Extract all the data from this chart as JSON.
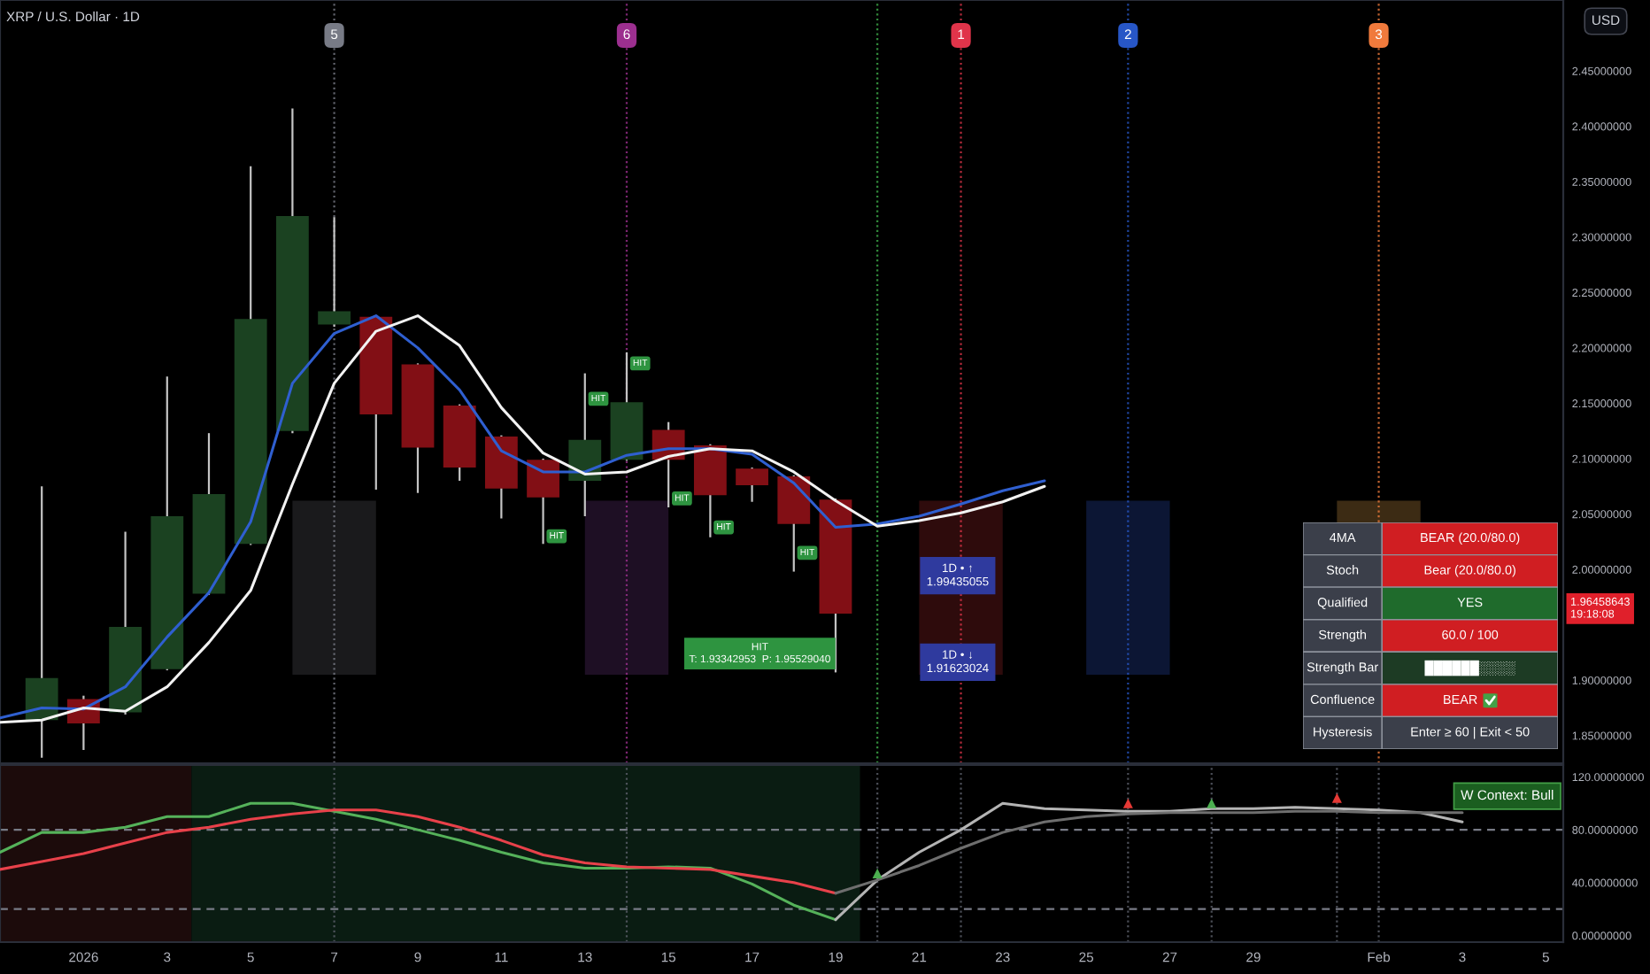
{
  "chart_data": [
    {
      "type": "candlestick",
      "title": "XRP / U.S. Dollar · 1D",
      "xlim": [
        "2025-12-30",
        "2026-02-05T10:00"
      ],
      "ylim": [
        1.825,
        2.514
      ],
      "yticks": [
        {
          "value": 1.85,
          "label": "1.85000000"
        },
        {
          "value": 1.9,
          "label": "1.90000000"
        },
        {
          "value": 2.0,
          "label": "2.00000000"
        },
        {
          "value": 2.05,
          "label": "2.05000000"
        },
        {
          "value": 2.1,
          "label": "2.10000000"
        },
        {
          "value": 2.15,
          "label": "2.15000000"
        },
        {
          "value": 2.2,
          "label": "2.20000000"
        },
        {
          "value": 2.25,
          "label": "2.25000000"
        },
        {
          "value": 2.3,
          "label": "2.30000000"
        },
        {
          "value": 2.35,
          "label": "2.35000000"
        },
        {
          "value": 2.4,
          "label": "2.40000000"
        },
        {
          "value": 2.45,
          "label": "2.45000000"
        }
      ],
      "tick_labels": "y",
      "series": [
        {
          "type": "bar",
          "x": [
            "2026-01-07",
            "2026-01-14",
            "2026-01-22",
            "2026-01-26",
            "2026-02-01"
          ],
          "base": [
            1.905,
            1.905,
            1.905,
            1.905,
            1.905
          ],
          "values": [
            0.157,
            0.157,
            0.157,
            0.157,
            0.157
          ],
          "colors": [
            "#1a1a1c",
            "#1e0f24",
            "#2e0b0c",
            "#0c1634",
            "#3c2b14"
          ]
        },
        {
          "type": "line",
          "color": "#2f5fd0",
          "x": [
            "2025-12-30",
            "2025-12-31",
            "2026-01-01",
            "2026-01-02",
            "2026-01-03",
            "2026-01-04",
            "2026-01-05",
            "2026-01-06",
            "2026-01-07",
            "2026-01-08",
            "2026-01-09",
            "2026-01-10",
            "2026-01-11",
            "2026-01-12",
            "2026-01-13",
            "2026-01-14",
            "2026-01-15",
            "2026-01-16",
            "2026-01-17",
            "2026-01-18",
            "2026-01-19",
            "2026-01-20",
            "2026-01-21",
            "2026-01-22",
            "2026-01-23",
            "2026-01-24"
          ],
          "values": [
            1.866,
            1.875,
            1.874,
            1.894,
            1.939,
            1.979,
            2.043,
            2.168,
            2.213,
            2.229,
            2.2,
            2.162,
            2.107,
            2.088,
            2.088,
            2.103,
            2.109,
            2.109,
            2.104,
            2.078,
            2.038,
            2.041,
            2.048,
            2.059,
            2.071,
            2.08
          ]
        },
        {
          "type": "line",
          "color": "#f2f2f2",
          "x": [
            "2025-12-30",
            "2025-12-31",
            "2026-01-01",
            "2026-01-02",
            "2026-01-03",
            "2026-01-04",
            "2026-01-05",
            "2026-01-06",
            "2026-01-07",
            "2026-01-08",
            "2026-01-09",
            "2026-01-10",
            "2026-01-11",
            "2026-01-12",
            "2026-01-13",
            "2026-01-14",
            "2026-01-15",
            "2026-01-16",
            "2026-01-17",
            "2026-01-18",
            "2026-01-19",
            "2026-01-20",
            "2026-01-21",
            "2026-01-22",
            "2026-01-23",
            "2026-01-24"
          ],
          "values": [
            1.862,
            1.864,
            1.875,
            1.872,
            1.894,
            1.934,
            1.981,
            2.077,
            2.168,
            2.215,
            2.229,
            2.202,
            2.146,
            2.105,
            2.086,
            2.088,
            2.102,
            2.109,
            2.107,
            2.088,
            2.062,
            2.039,
            2.044,
            2.051,
            2.061,
            2.075
          ]
        },
        {
          "type": "candlestick",
          "color": "#c4c4c4",
          "x": [
            "2025-12-31",
            "2026-01-01",
            "2026-01-02",
            "2026-01-03",
            "2026-01-04",
            "2026-01-05",
            "2026-01-06",
            "2026-01-07",
            "2026-01-08",
            "2026-01-09",
            "2026-01-10",
            "2026-01-11",
            "2026-01-12",
            "2026-01-13",
            "2026-01-14",
            "2026-01-15",
            "2026-01-16",
            "2026-01-17",
            "2026-01-18",
            "2026-01-19"
          ],
          "ohlc": [
            [
              1.864,
              2.075,
              1.83,
              1.902
            ],
            [
              1.883,
              1.886,
              1.837,
              1.861
            ],
            [
              1.871,
              2.034,
              1.869,
              1.948
            ],
            [
              1.91,
              2.174,
              1.909,
              2.048
            ],
            [
              1.978,
              2.123,
              1.977,
              2.068
            ],
            [
              2.023,
              2.364,
              2.022,
              2.226
            ],
            [
              2.125,
              2.416,
              2.123,
              2.319
            ],
            [
              2.221,
              2.318,
              2.219,
              2.233
            ],
            [
              2.228,
              2.229,
              2.072,
              2.14
            ],
            [
              2.185,
              2.186,
              2.069,
              2.11
            ],
            [
              2.148,
              2.149,
              2.08,
              2.092
            ],
            [
              2.12,
              2.121,
              2.046,
              2.073
            ],
            [
              2.099,
              2.1,
              2.023,
              2.065
            ],
            [
              2.08,
              2.177,
              2.048,
              2.117
            ],
            [
              2.099,
              2.196,
              2.098,
              2.151
            ],
            [
              2.126,
              2.133,
              2.056,
              2.099
            ],
            [
              2.112,
              2.113,
              2.029,
              2.067
            ],
            [
              2.091,
              2.092,
              2.061,
              2.076
            ],
            [
              2.084,
              2.085,
              1.998,
              2.041
            ],
            [
              2.063,
              2.064,
              1.907,
              1.96
            ]
          ],
          "colors": [
            "#1b4221",
            "#820f15",
            "#1b4221",
            "#1b4221",
            "#1b4221",
            "#1b4221",
            "#1b4221",
            "#1b4221",
            "#820f15",
            "#820f15",
            "#820f15",
            "#820f15",
            "#820f15",
            "#1b4221",
            "#1b4221",
            "#820f15",
            "#820f15",
            "#820f15",
            "#820f15",
            "#820f15"
          ]
        }
      ],
      "ref_lines": [
        {
          "axis": "x",
          "value": "2026-01-07",
          "label": "5",
          "color": "#787b86",
          "line_style": "dotted"
        },
        {
          "axis": "x",
          "value": "2026-01-14",
          "label": "6",
          "color": "#9c2f8f",
          "line_style": "dotted"
        },
        {
          "axis": "x",
          "value": "2026-01-22",
          "label": "1",
          "color": "#e0344a",
          "line_style": "dotted"
        },
        {
          "axis": "x",
          "value": "2026-01-26",
          "label": "2",
          "color": "#2756c6",
          "line_style": "dotted"
        },
        {
          "axis": "x",
          "value": "2026-02-01",
          "label": "3",
          "color": "#f07a3c",
          "line_style": "dotted"
        },
        {
          "axis": "x",
          "value": "2026-01-20",
          "color": "#3fae4a",
          "line_style": "dotted"
        }
      ],
      "annotations": [
        "USD",
        {
          "text": "1.96458643\n19:18:08",
          "y": 1.96458643
        },
        {
          "text": "HIT",
          "x": "2026-01-12",
          "y": 2.03
        },
        {
          "text": "HIT",
          "x": "2026-01-13",
          "y": 2.154
        },
        {
          "text": "HIT",
          "x": "2026-01-14",
          "y": 2.186
        },
        {
          "text": "HIT",
          "x": "2026-01-15",
          "y": 2.064
        },
        {
          "text": "HIT",
          "x": "2026-01-16",
          "y": 2.038
        },
        {
          "text": "HIT",
          "x": "2026-01-18",
          "y": 2.015
        },
        {
          "text": "HIT\nT: 1.93342953  P: 1.95529040",
          "x": "2026-01-19",
          "y": 1.924
        },
        {
          "text": "1D • ↑\n1.99435055",
          "x": "2026-01-21",
          "y": 1.99435055
        },
        {
          "text": "1D • ↓\n1.91623024",
          "x": "2026-01-21",
          "y": 1.91623024
        }
      ]
    },
    {
      "type": "line",
      "xlim": [
        "2025-12-30",
        "2026-02-05T10:00"
      ],
      "ylim": [
        -5,
        129
      ],
      "xticks": [
        {
          "value": "2026-01-01",
          "label": "2026"
        },
        {
          "value": "2026-01-03",
          "label": "3"
        },
        {
          "value": "2026-01-05",
          "label": "5"
        },
        {
          "value": "2026-01-07",
          "label": "7"
        },
        {
          "value": "2026-01-09",
          "label": "9"
        },
        {
          "value": "2026-01-11",
          "label": "11"
        },
        {
          "value": "2026-01-13",
          "label": "13"
        },
        {
          "value": "2026-01-15",
          "label": "15"
        },
        {
          "value": "2026-01-17",
          "label": "17"
        },
        {
          "value": "2026-01-19",
          "label": "19"
        },
        {
          "value": "2026-01-21",
          "label": "21"
        },
        {
          "value": "2026-01-23",
          "label": "23"
        },
        {
          "value": "2026-01-25",
          "label": "25"
        },
        {
          "value": "2026-01-27",
          "label": "27"
        },
        {
          "value": "2026-01-29",
          "label": "29"
        },
        {
          "value": "2026-02-01",
          "label": "Feb"
        },
        {
          "value": "2026-02-03",
          "label": "3"
        },
        {
          "value": "2026-02-05",
          "label": "5"
        }
      ],
      "yticks": [
        {
          "value": 0,
          "label": "0.00000000"
        },
        {
          "value": 40,
          "label": "40.00000000"
        },
        {
          "value": 80,
          "label": "80.00000000"
        },
        {
          "value": 120,
          "label": "120.00000000"
        }
      ],
      "series": [
        {
          "type": "line",
          "color": "#55b25a",
          "x": [
            "2025-12-30",
            "2025-12-31",
            "2026-01-01",
            "2026-01-02",
            "2026-01-03",
            "2026-01-04",
            "2026-01-05",
            "2026-01-06",
            "2026-01-07",
            "2026-01-08",
            "2026-01-09",
            "2026-01-10",
            "2026-01-11",
            "2026-01-12",
            "2026-01-13",
            "2026-01-14",
            "2026-01-15",
            "2026-01-16",
            "2026-01-17",
            "2026-01-18",
            "2026-01-19"
          ],
          "values": [
            63,
            78,
            78,
            82,
            90,
            90,
            100,
            100,
            94,
            88,
            80,
            72,
            63,
            55,
            51,
            51,
            52,
            51,
            39,
            23,
            12
          ]
        },
        {
          "type": "line",
          "color": "#e8414a",
          "x": [
            "2025-12-30",
            "2025-12-31",
            "2026-01-01",
            "2026-01-02",
            "2026-01-03",
            "2026-01-04",
            "2026-01-05",
            "2026-01-06",
            "2026-01-07",
            "2026-01-08",
            "2026-01-09",
            "2026-01-10",
            "2026-01-11",
            "2026-01-12",
            "2026-01-13",
            "2026-01-14",
            "2026-01-15",
            "2026-01-16",
            "2026-01-17",
            "2026-01-18",
            "2026-01-19"
          ],
          "values": [
            50,
            56,
            62,
            70,
            78,
            82,
            88,
            92,
            95,
            95,
            90,
            82,
            72,
            61,
            55,
            52,
            51,
            50,
            45,
            40,
            32
          ]
        },
        {
          "type": "line",
          "color": "#b4b4b4",
          "x": [
            "2026-01-19",
            "2026-01-20",
            "2026-01-21",
            "2026-01-22",
            "2026-01-23",
            "2026-01-24",
            "2026-01-25",
            "2026-01-26",
            "2026-01-27",
            "2026-01-28",
            "2026-01-29",
            "2026-01-30",
            "2026-01-31",
            "2026-02-01",
            "2026-02-02",
            "2026-02-03"
          ],
          "values": [
            12,
            42,
            63,
            80,
            100,
            96,
            95,
            94,
            94,
            96,
            96,
            97,
            96,
            95,
            93,
            86
          ]
        },
        {
          "type": "line",
          "color": "#6e6e6e",
          "x": [
            "2026-01-19",
            "2026-01-20",
            "2026-01-21",
            "2026-01-22",
            "2026-01-23",
            "2026-01-24",
            "2026-01-25",
            "2026-01-26",
            "2026-01-27",
            "2026-01-28",
            "2026-01-29",
            "2026-01-30",
            "2026-01-31",
            "2026-02-01",
            "2026-02-02",
            "2026-02-03"
          ],
          "values": [
            32,
            42,
            53,
            66,
            78,
            86,
            90,
            92,
            93,
            93,
            93,
            94,
            94,
            93,
            93,
            93
          ]
        },
        {
          "type": "scatter",
          "marker": "triangle",
          "color": "#4caf50",
          "x": [
            "2026-01-20",
            "2026-01-28"
          ],
          "values": [
            47,
            100
          ]
        },
        {
          "type": "scatter",
          "marker": "triangle",
          "color": "#e53935",
          "x": [
            "2026-01-26",
            "2026-01-31"
          ],
          "values": [
            100,
            104
          ]
        }
      ],
      "ref_lines": [
        {
          "axis": "y",
          "value": 80,
          "color": "#787b86",
          "line_style": "dashed"
        },
        {
          "axis": "y",
          "value": 20,
          "color": "#787b86",
          "line_style": "dashed"
        },
        {
          "axis": "x",
          "value": "2026-01-07",
          "color": "#5d606b",
          "line_style": "dotted"
        },
        {
          "axis": "x",
          "value": "2026-01-14",
          "color": "#5d606b",
          "line_style": "dotted"
        },
        {
          "axis": "x",
          "value": "2026-01-20",
          "color": "#5d606b",
          "line_style": "dotted"
        },
        {
          "axis": "x",
          "value": "2026-01-22",
          "color": "#5d606b",
          "line_style": "dotted"
        },
        {
          "axis": "x",
          "value": "2026-01-26",
          "color": "#5d606b",
          "line_style": "dotted"
        },
        {
          "axis": "x",
          "value": "2026-01-28",
          "color": "#5d606b",
          "line_style": "dotted"
        },
        {
          "axis": "x",
          "value": "2026-01-31",
          "color": "#5d606b",
          "line_style": "dotted"
        },
        {
          "axis": "x",
          "value": "2026-02-01",
          "color": "#5d606b",
          "line_style": "dotted"
        }
      ],
      "bands": [
        {
          "axis": "x",
          "from": "2025-12-30",
          "to": "2026-01-03T14:00",
          "color": "#1c0b0b"
        },
        {
          "axis": "x",
          "from": "2026-01-03T14:00",
          "to": "2026-01-19T14:00",
          "color": "#0a1c12"
        }
      ],
      "annotations": [
        "W Context: Bull"
      ]
    },
    {
      "type": "other",
      "categories": [
        "4MA",
        "Stoch",
        "Qualified",
        "Strength",
        "Strength Bar",
        "Confluence",
        "Hysteresis"
      ],
      "value_labels": [
        "BEAR (20.0/80.0)",
        "Bear (20.0/80.0)",
        "YES",
        "60.0 / 100",
        "██████░░░░",
        "BEAR",
        "Enter ≥ 60 | Exit < 50"
      ],
      "colors": [
        "#d01e22",
        "#d01e22",
        "#1f6b2c",
        "#d01e22",
        "#1d3b24",
        "#d01e22",
        "#3b3f4a"
      ]
    }
  ]
}
